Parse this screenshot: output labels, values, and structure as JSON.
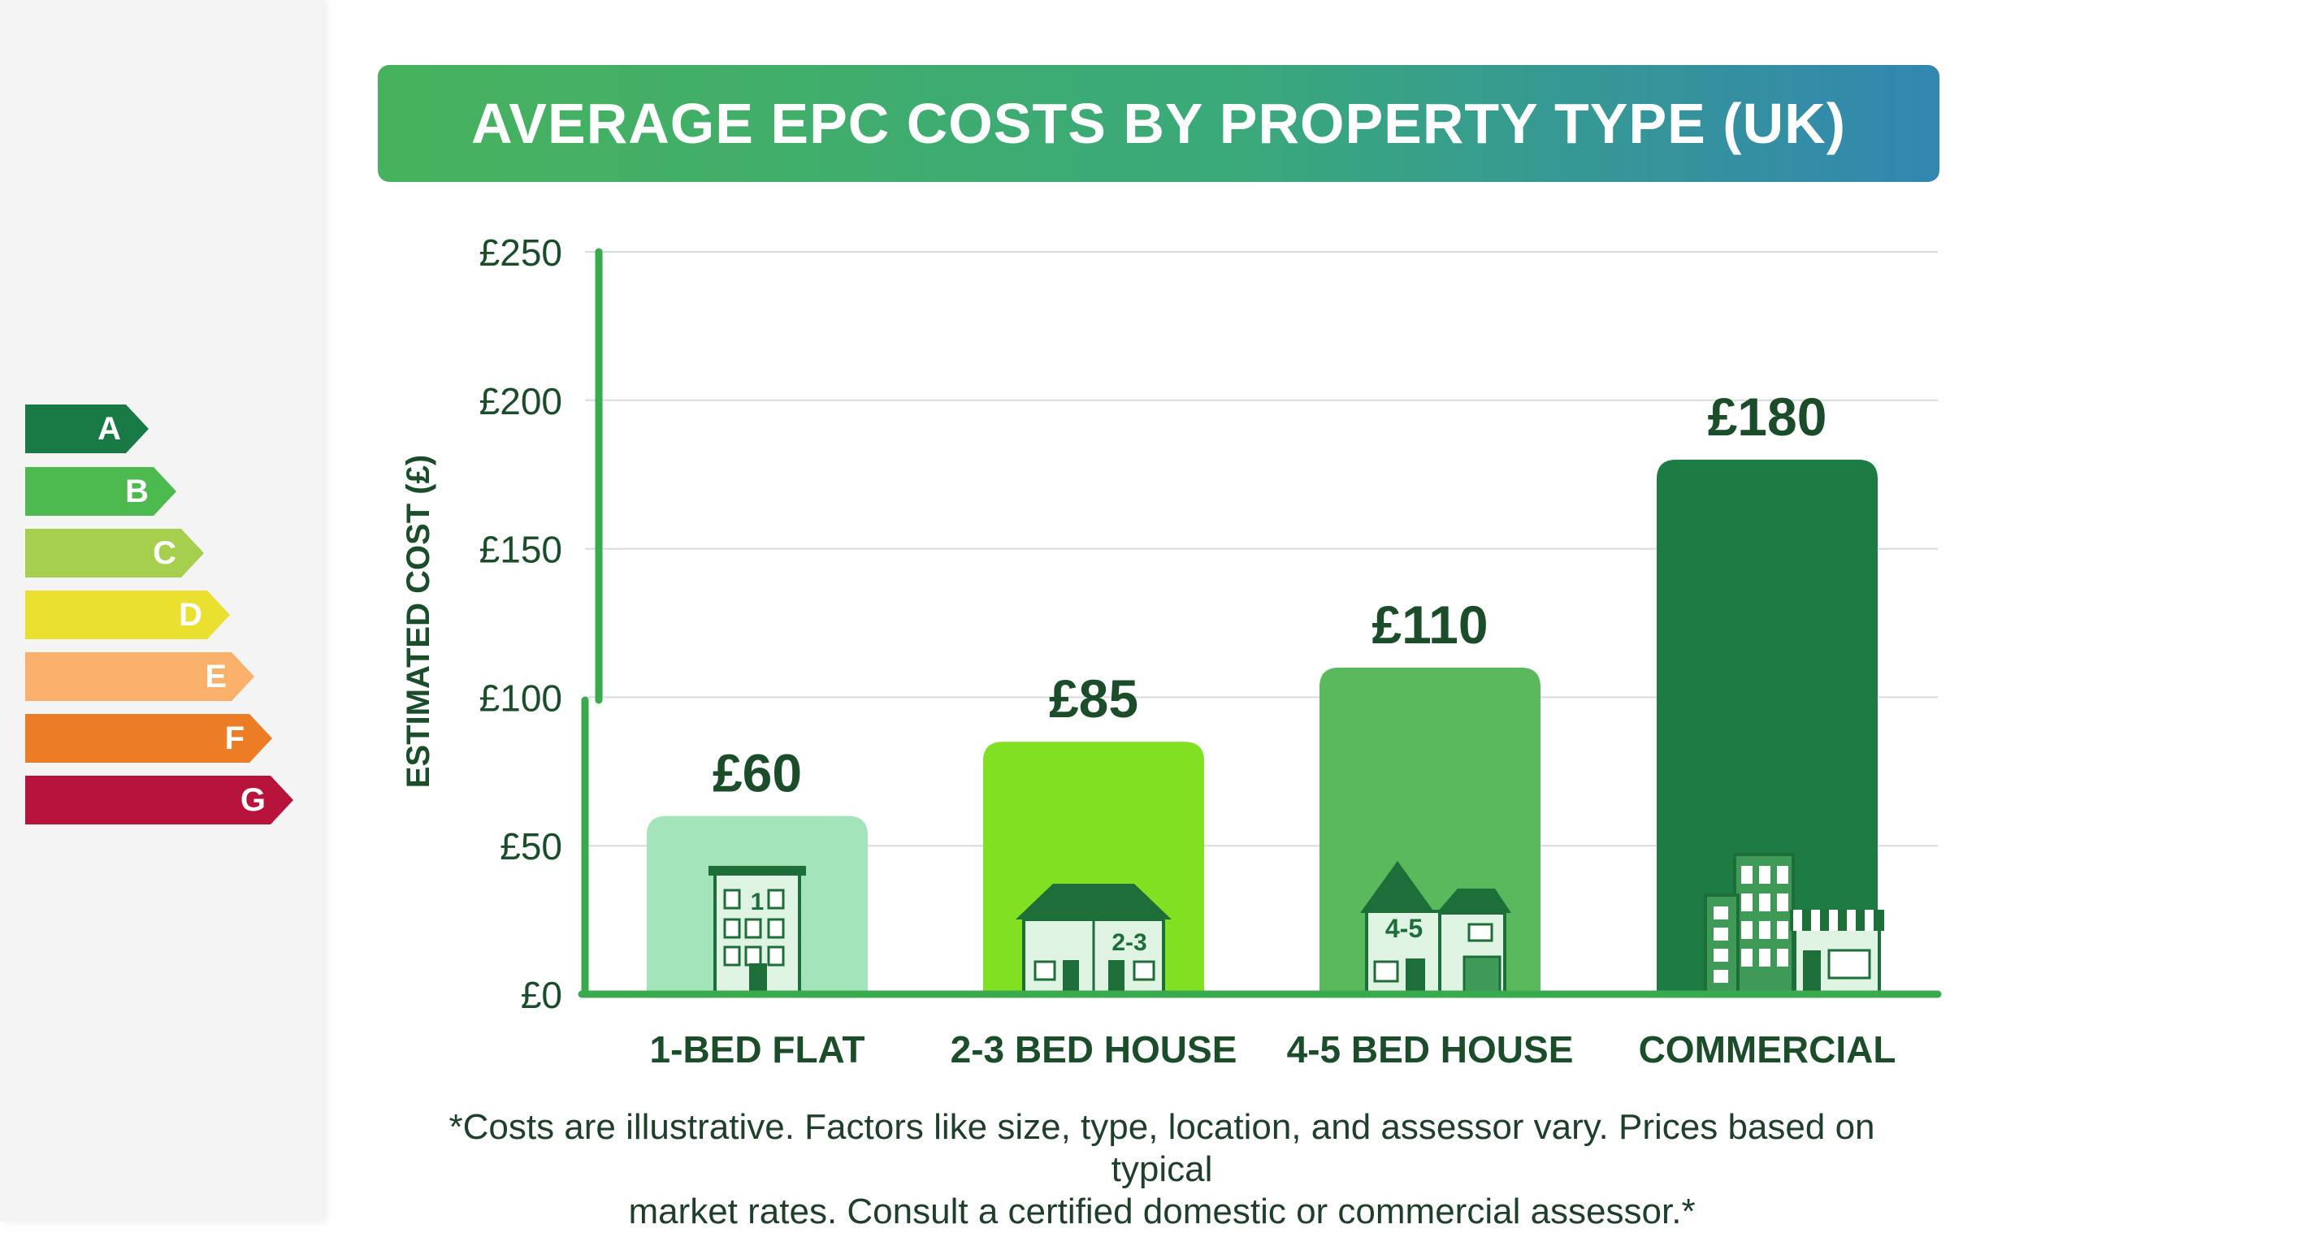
{
  "title": "AVERAGE EPC COSTS BY PROPERTY TYPE (UK)",
  "epc_scale": [
    {
      "letter": "A",
      "color": "#197a45"
    },
    {
      "letter": "B",
      "color": "#4cba4f"
    },
    {
      "letter": "C",
      "color": "#a5cf4c"
    },
    {
      "letter": "D",
      "color": "#e9e030"
    },
    {
      "letter": "E",
      "color": "#f8b06a"
    },
    {
      "letter": "F",
      "color": "#ed7d24"
    },
    {
      "letter": "G",
      "color": "#b8133a"
    }
  ],
  "chart_data": {
    "type": "bar",
    "categories": [
      "1-BED FLAT",
      "2-3 BED HOUSE",
      "4-5 BED HOUSE",
      "COMMERCIAL"
    ],
    "values": [
      60,
      85,
      110,
      180
    ],
    "value_labels": [
      "£60",
      "£85",
      "£110",
      "£180"
    ],
    "bar_colors": [
      "#a3e4bb",
      "#82e022",
      "#59b95c",
      "#1c7c44"
    ],
    "icon_labels": [
      "1",
      "2-3",
      "4-5",
      ""
    ],
    "icons": [
      "apartment-building-icon",
      "semi-detached-house-icon",
      "detached-house-icon",
      "commercial-building-icon"
    ],
    "ylabel": "ESTIMATED COST (£)",
    "xlabel": "",
    "ylim": [
      0,
      250
    ],
    "yticks": [
      0,
      50,
      100,
      150,
      200,
      250
    ],
    "ytick_labels": [
      "£0",
      "£50",
      "£100",
      "£150",
      "£200",
      "£250"
    ],
    "grid": true,
    "axis_color": "#3aaa4e",
    "text_color": "#1b4d2b"
  },
  "footnote": {
    "line1": "*Costs are illustrative. Factors like size, type, location, and assessor vary. Prices based on typical",
    "line2": "market rates. Consult a certified domestic or commercial assessor.*"
  }
}
